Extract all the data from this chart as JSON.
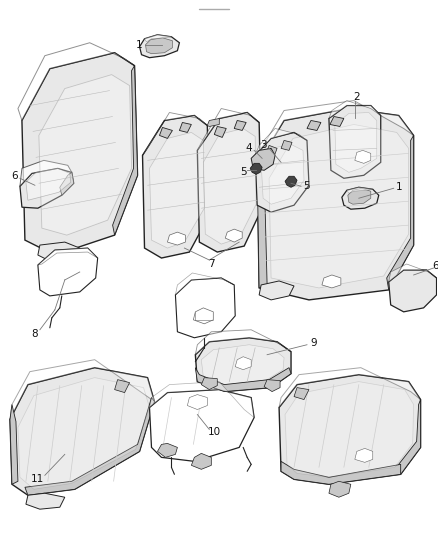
{
  "background_color": "#ffffff",
  "fig_width": 4.38,
  "fig_height": 5.33,
  "dpi": 100,
  "line_color": "#333333",
  "light_gray": "#e8e8e8",
  "mid_gray": "#c8c8c8",
  "dark_gray": "#888888",
  "label_fontsize": 7.5,
  "callout_line_color": "#777777",
  "edge_color": "#222222",
  "inner_edge": "#666666"
}
